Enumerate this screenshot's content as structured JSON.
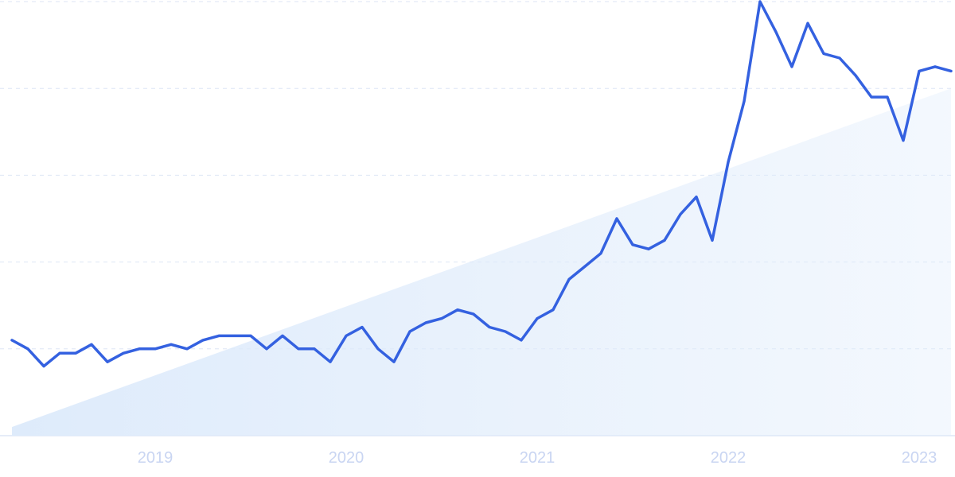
{
  "chart_data": {
    "type": "line",
    "title": "",
    "xlabel": "",
    "ylabel": "",
    "x_start": "2018-04",
    "x_step": "month",
    "x_tick_labels": [
      "2019",
      "2020",
      "2021",
      "2022",
      "2023"
    ],
    "ylim": [
      0,
      100
    ],
    "y_grid_lines": [
      0,
      20,
      40,
      60,
      80,
      100
    ],
    "grid": true,
    "legend": "none",
    "values": [
      22,
      20,
      16,
      19,
      19,
      21,
      17,
      19,
      20,
      20,
      21,
      20,
      22,
      23,
      23,
      23,
      20,
      23,
      20,
      20,
      17,
      23,
      25,
      20,
      17,
      24,
      26,
      27,
      29,
      28,
      25,
      24,
      22,
      27,
      29,
      36,
      39,
      42,
      50,
      44,
      43,
      45,
      51,
      55,
      45,
      63,
      77,
      100,
      93,
      85,
      95,
      88,
      87,
      83,
      78,
      78,
      68,
      84,
      85,
      84
    ],
    "trendline": [
      2,
      80
    ],
    "colors": {
      "line": "#3461e0",
      "trend_fill": "#deebfb",
      "grid": "#dde6f5",
      "tick_label": "#c9d5f2"
    }
  }
}
